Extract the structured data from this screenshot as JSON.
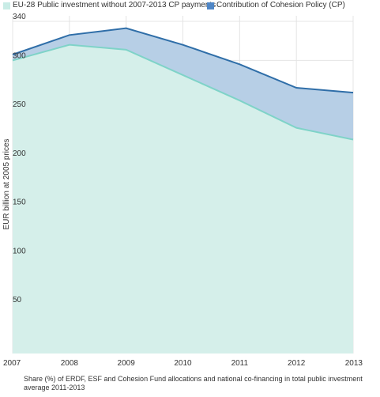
{
  "legend": {
    "items": [
      {
        "label": "EU-28 Public investment without 2007-2013 CP payments",
        "color": "#c9ece6"
      },
      {
        "label": "Contribution of Cohesion Policy (CP)",
        "color": "#4f86c6"
      }
    ]
  },
  "caption": "Share (%) of ERDF, ESF and Cohesion Fund allocations and national co-financing in total public investment average 2011-2013",
  "chart_data": {
    "type": "area",
    "x": [
      "2007",
      "2008",
      "2009",
      "2010",
      "2011",
      "2012",
      "2013"
    ],
    "series": [
      {
        "name": "EU-28 Public investment without 2007-2013 CP payments",
        "values": [
          300,
          316,
          311,
          285,
          259,
          231,
          219
        ]
      },
      {
        "name": "Contribution of Cohesion Policy (CP)",
        "values": [
          6,
          10,
          22,
          31,
          37,
          41,
          48
        ]
      }
    ],
    "totals": [
      306,
      326,
      333,
      316,
      296,
      272,
      267
    ],
    "xlabel": "",
    "ylabel": "EUR billion at 2005 prices",
    "y_ticks": [
      "50",
      "100",
      "150",
      "200",
      "250",
      "300",
      "340"
    ],
    "ylim": [
      0,
      340
    ],
    "grid": true,
    "legend_position": "top-left",
    "colors": {
      "base_fill": "#d5efea",
      "base_line": "#7fd3c8",
      "cp_fill": "#b7cfe6",
      "cp_line": "#2f6ea8",
      "grid": "#e4e4e4"
    }
  }
}
